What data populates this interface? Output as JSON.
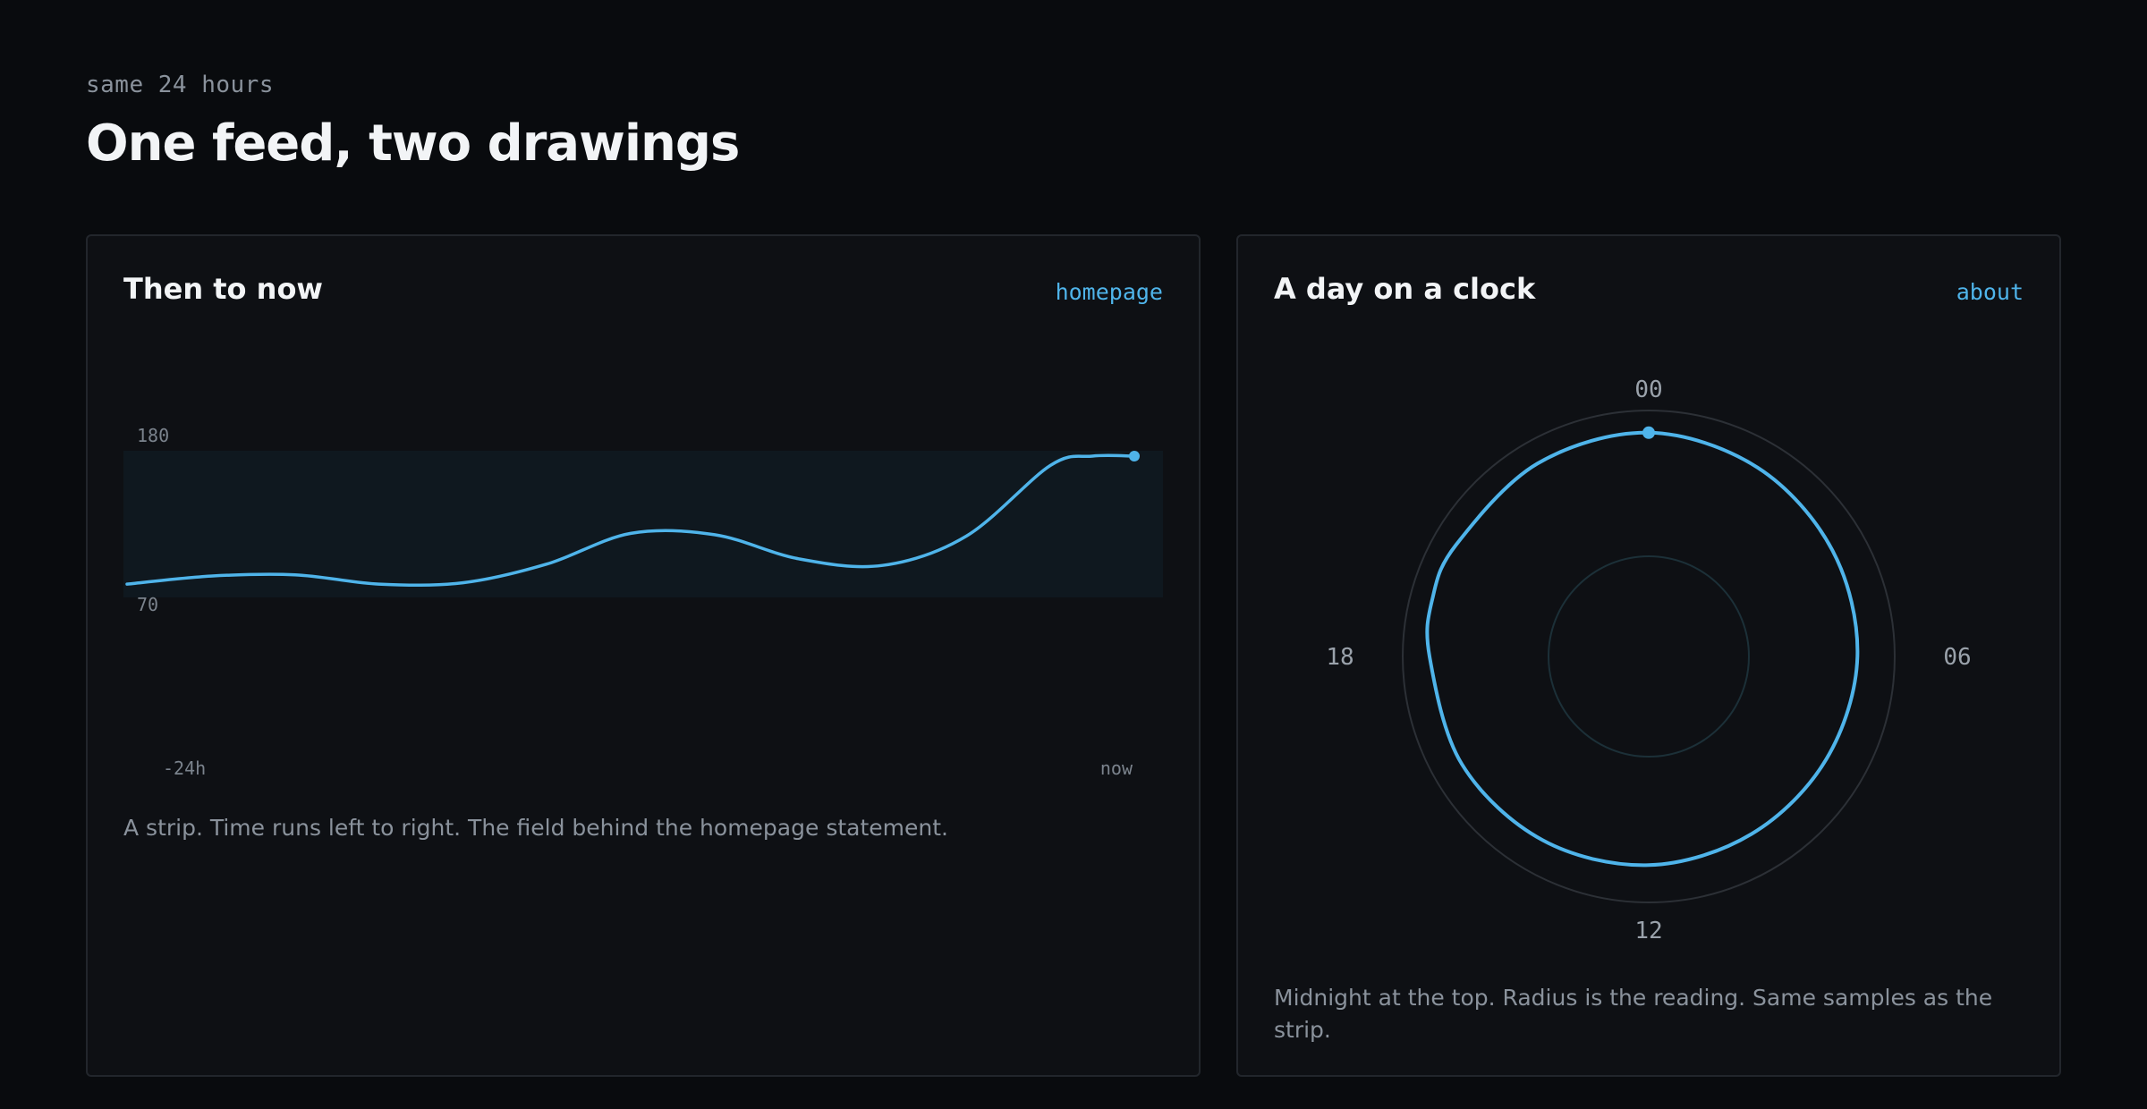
{
  "header": {
    "eyebrow": "same 24 hours",
    "title": "One feed, two drawings"
  },
  "panels": [
    {
      "title": "Then to now",
      "link": "homepage",
      "caption": "A strip. Time runs left to right. The field behind the homepage statement."
    },
    {
      "title": "A day on a clock",
      "link": "about",
      "caption": "Midnight at the top. Radius is the reading. Same samples as the strip."
    }
  ],
  "colors": {
    "accent": "#4fb4ea",
    "band": "#0f181f",
    "ring": "#2c3036",
    "inner_ring": "#1c3038"
  },
  "chart_data": [
    {
      "type": "line",
      "y_axis_labels": [
        "180",
        "70"
      ],
      "ylim": [
        70,
        180
      ],
      "x_labels": [
        "-24h",
        "now"
      ],
      "x_hours": [
        -24,
        -22,
        -20,
        -18,
        -16,
        -14,
        -12,
        -10,
        -8,
        -6,
        -4,
        -2,
        -1,
        0
      ],
      "values": [
        80,
        86,
        87,
        80,
        81,
        95,
        118,
        117,
        99,
        94,
        116,
        169,
        176,
        176
      ],
      "marker": "end-point"
    },
    {
      "type": "polar-line",
      "angle_labels": [
        "00",
        "06",
        "12",
        "18"
      ],
      "hours": [
        0,
        2,
        4,
        6,
        8,
        10,
        12,
        14,
        16,
        18,
        19,
        20,
        22
      ],
      "values": [
        176,
        171,
        166,
        163,
        160,
        160,
        163,
        166,
        169,
        172,
        176,
        175,
        175
      ],
      "marker": "00"
    }
  ]
}
